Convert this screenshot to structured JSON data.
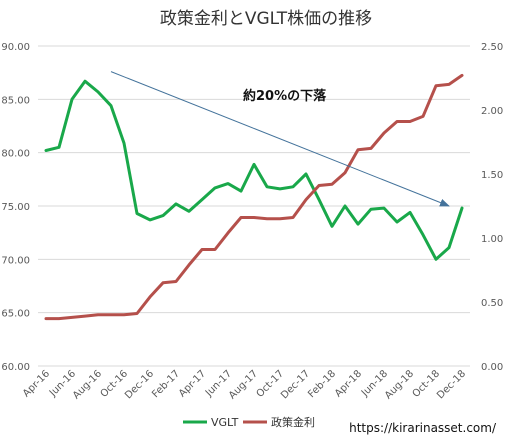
{
  "watermark": "https://kirarinasset.com/",
  "chart_data": {
    "type": "line",
    "title": "政策金利とVGLT株価の推移",
    "annotation": "約20%の下落",
    "categories": [
      "Apr-16",
      "May-16",
      "Jun-16",
      "Jul-16",
      "Aug-16",
      "Sep-16",
      "Oct-16",
      "Nov-16",
      "Dec-16",
      "Jan-17",
      "Feb-17",
      "Mar-17",
      "Apr-17",
      "May-17",
      "Jun-17",
      "Jul-17",
      "Aug-17",
      "Sep-17",
      "Oct-17",
      "Nov-17",
      "Dec-17",
      "Jan-18",
      "Feb-18",
      "Mar-18",
      "Apr-18",
      "May-18",
      "Jun-18",
      "Jul-18",
      "Aug-18",
      "Sep-18",
      "Oct-18",
      "Nov-18",
      "Dec-18"
    ],
    "tick_labels": [
      "Apr-16",
      "Jun-16",
      "Aug-16",
      "Oct-16",
      "Dec-16",
      "Feb-17",
      "Apr-17",
      "Jun-17",
      "Aug-17",
      "Oct-17",
      "Dec-17",
      "Feb-18",
      "Apr-18",
      "Jun-18",
      "Aug-18",
      "Oct-18",
      "Dec-18"
    ],
    "y_left": {
      "min": 60,
      "max": 90,
      "ticks": [
        "60.00",
        "65.00",
        "70.00",
        "75.00",
        "80.00",
        "85.00",
        "90.00"
      ]
    },
    "y_right": {
      "min": 0,
      "max": 2.5,
      "ticks": [
        "0.00",
        "0.50",
        "1.00",
        "1.50",
        "2.00",
        "2.50"
      ]
    },
    "grid": true,
    "legend_position": "bottom",
    "series": [
      {
        "name": "VGLT",
        "axis": "left",
        "color": "#19a84a",
        "values": [
          80.2,
          80.5,
          85.0,
          86.7,
          85.7,
          84.4,
          80.9,
          74.3,
          73.7,
          74.1,
          75.2,
          74.5,
          75.6,
          76.7,
          77.1,
          76.4,
          78.9,
          76.8,
          76.6,
          76.8,
          78.0,
          75.6,
          73.1,
          75.0,
          73.3,
          74.7,
          74.8,
          73.5,
          74.4,
          72.3,
          70.0,
          71.1,
          74.8
        ]
      },
      {
        "name": "政策金利",
        "axis": "right",
        "color": "#b5504b",
        "values": [
          0.37,
          0.37,
          0.38,
          0.39,
          0.4,
          0.4,
          0.4,
          0.41,
          0.54,
          0.65,
          0.66,
          0.79,
          0.91,
          0.91,
          1.04,
          1.16,
          1.16,
          1.15,
          1.15,
          1.16,
          1.3,
          1.41,
          1.42,
          1.51,
          1.69,
          1.7,
          1.82,
          1.91,
          1.91,
          1.95,
          2.19,
          2.2,
          2.27
        ]
      }
    ],
    "trend_arrow": {
      "from_category": "Sep-16",
      "from_value": 87.6,
      "to_category": "Nov-18",
      "to_value": 75.0,
      "color": "#44739b"
    }
  }
}
